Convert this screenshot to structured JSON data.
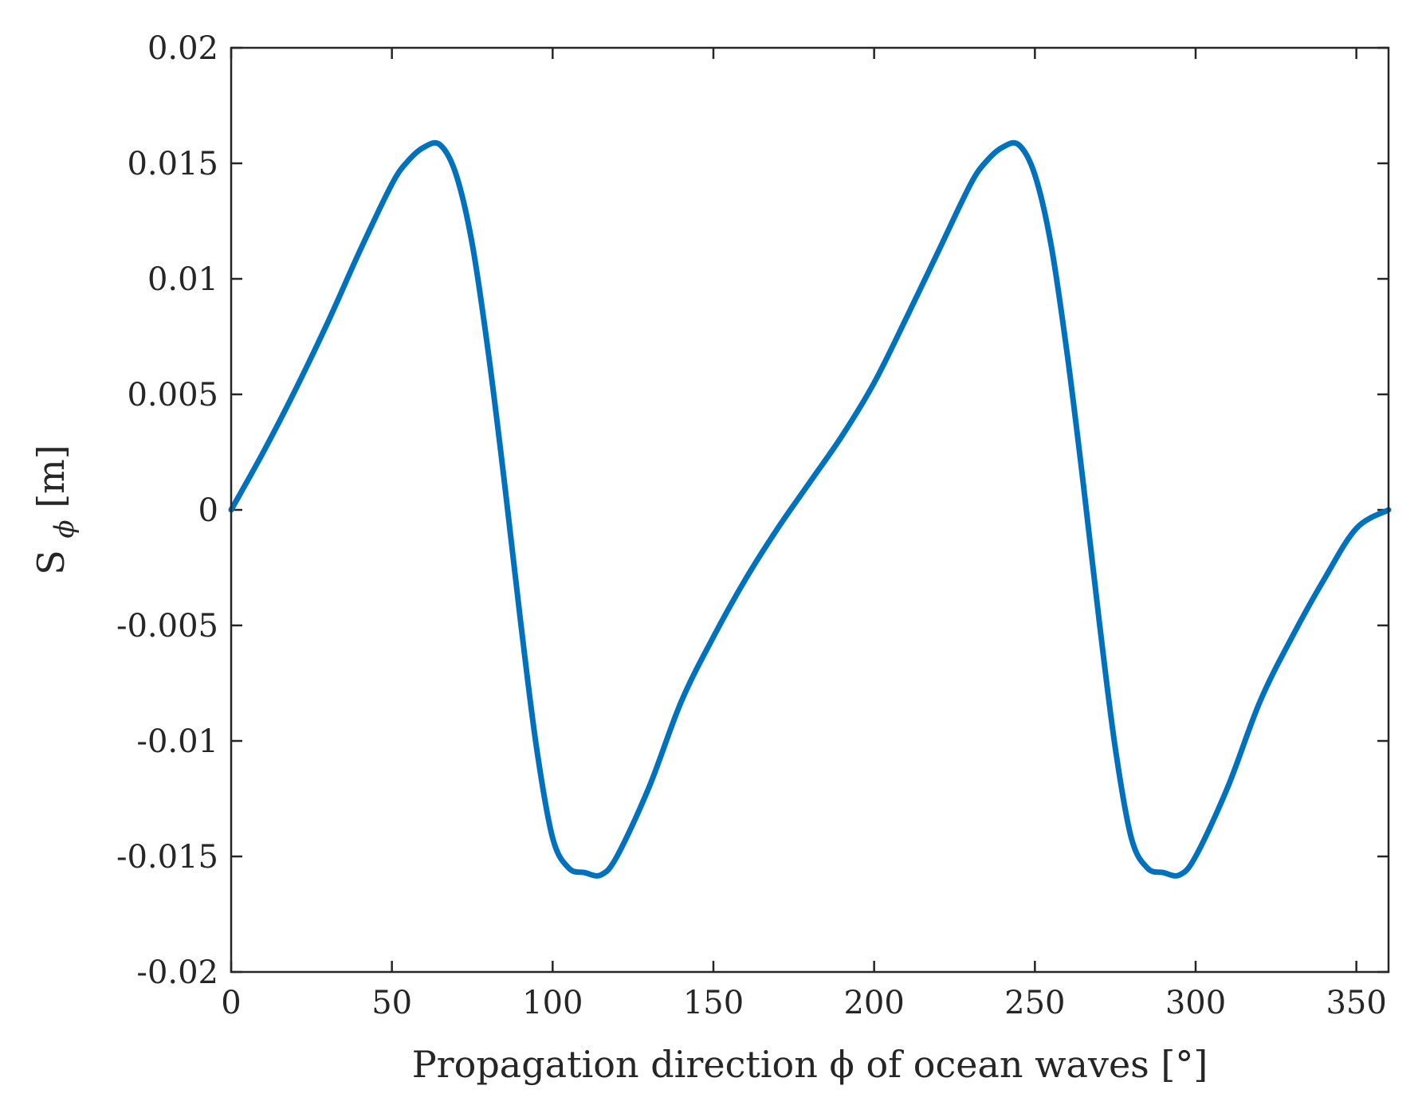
{
  "chart_data": {
    "type": "line",
    "title": "",
    "xlabel": "Propagation direction ϕ of ocean waves [°]",
    "ylabel": "S",
    "ylabel_subscript": "ϕ",
    "ylabel_unit": "[m]",
    "xlim": [
      0,
      360
    ],
    "ylim": [
      -0.02,
      0.02
    ],
    "xticks": [
      0,
      50,
      100,
      150,
      200,
      250,
      300,
      350
    ],
    "xtick_labels": [
      "0",
      "50",
      "100",
      "150",
      "200",
      "250",
      "300",
      "350"
    ],
    "yticks": [
      0.02,
      0.015,
      0.01,
      0.005,
      0,
      -0.005,
      -0.01,
      -0.015,
      -0.02
    ],
    "ytick_labels": [
      "0.02",
      "0.015",
      "0.01",
      "0.005",
      "0",
      "-0.005",
      "-0.01",
      "-0.015",
      "-0.02"
    ],
    "grid": false,
    "legend": "none",
    "series": [
      {
        "color": "#0072BD",
        "x": [
          0,
          10,
          20,
          30,
          40,
          50,
          55,
          60,
          65,
          70,
          75,
          80,
          85,
          90,
          95,
          100,
          105,
          110,
          115,
          120,
          130,
          140,
          150,
          160,
          170,
          180,
          190,
          200,
          210,
          220,
          230,
          235,
          240,
          245,
          250,
          255,
          260,
          265,
          270,
          275,
          280,
          285,
          290,
          295,
          300,
          310,
          320,
          330,
          340,
          350,
          360
        ],
        "y": [
          0.0,
          0.0025,
          0.0052,
          0.0081,
          0.0112,
          0.0141,
          0.0151,
          0.0157,
          0.0158,
          0.0145,
          0.0115,
          0.0068,
          0.0012,
          -0.0048,
          -0.0103,
          -0.0142,
          -0.0155,
          -0.0157,
          -0.0158,
          -0.015,
          -0.012,
          -0.0083,
          -0.0055,
          -0.003,
          -0.0008,
          0.0012,
          0.0032,
          0.0055,
          0.0083,
          0.0112,
          0.0141,
          0.0151,
          0.0157,
          0.0158,
          0.0145,
          0.0115,
          0.0068,
          0.0012,
          -0.0048,
          -0.0103,
          -0.0142,
          -0.0155,
          -0.0157,
          -0.0158,
          -0.015,
          -0.012,
          -0.0083,
          -0.0055,
          -0.003,
          -0.0008,
          0.0
        ]
      }
    ]
  }
}
